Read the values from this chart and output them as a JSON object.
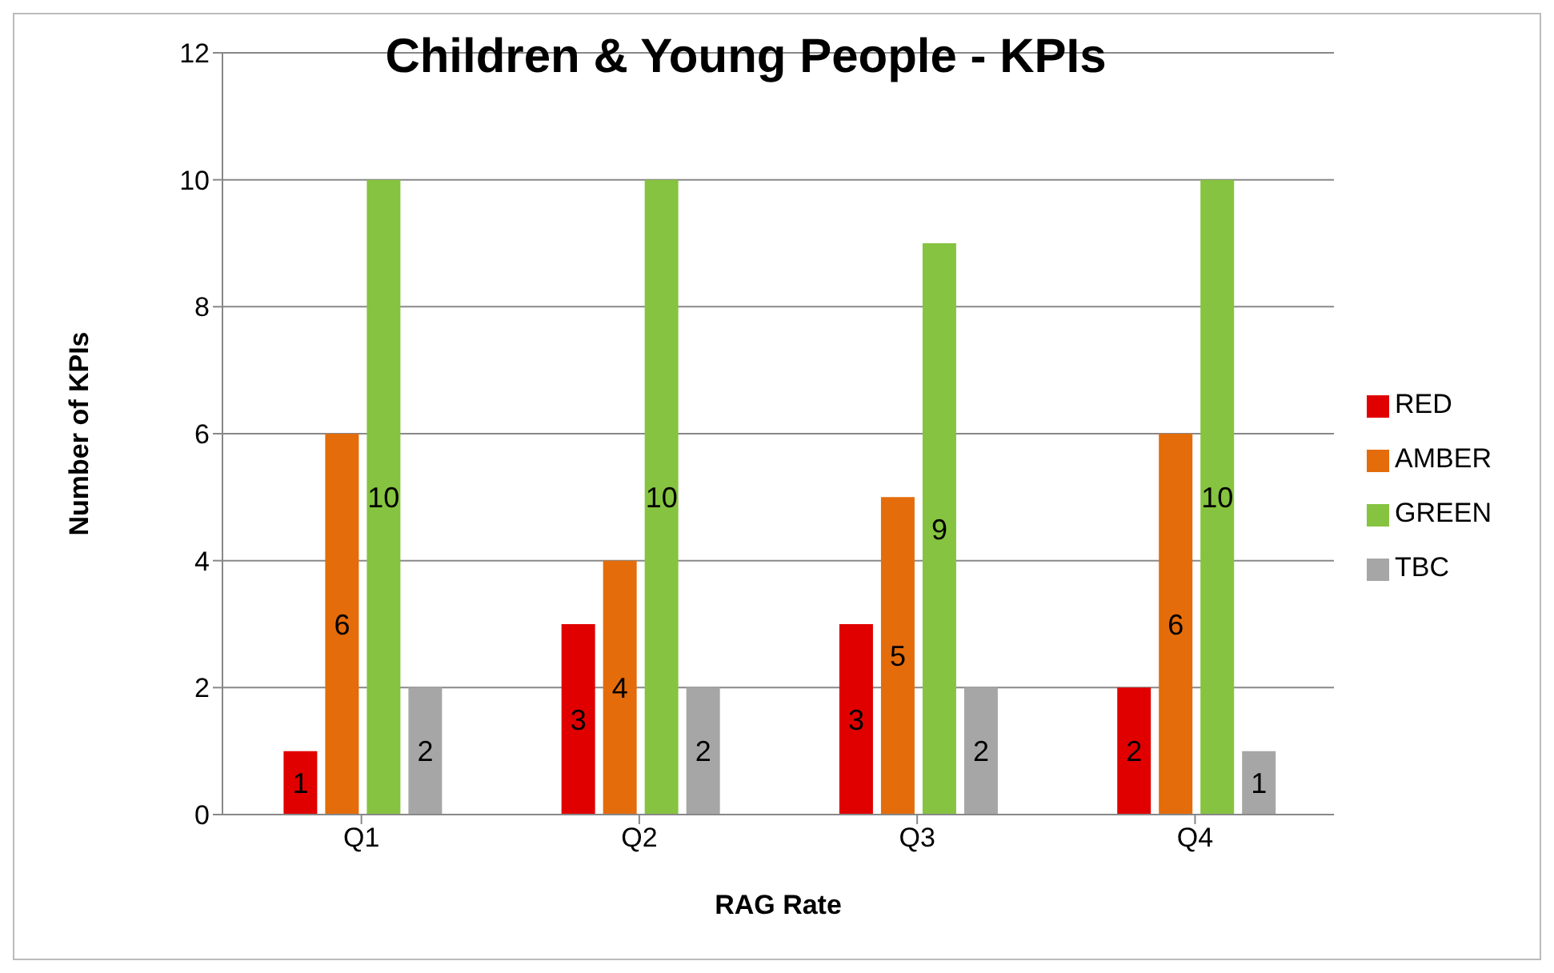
{
  "chart_data": {
    "type": "bar",
    "title": "Children & Young People - KPIs",
    "xlabel": "RAG Rate",
    "ylabel": "Number of KPIs",
    "categories": [
      "Q1",
      "Q2",
      "Q3",
      "Q4"
    ],
    "series": [
      {
        "name": "RED",
        "color": "#e00000",
        "values": [
          1,
          3,
          3,
          2
        ]
      },
      {
        "name": "AMBER",
        "color": "#e46c0a",
        "values": [
          6,
          4,
          5,
          6
        ]
      },
      {
        "name": "GREEN",
        "color": "#86c340",
        "values": [
          10,
          10,
          9,
          10
        ]
      },
      {
        "name": "TBC",
        "color": "#a6a6a6",
        "values": [
          2,
          2,
          2,
          1
        ]
      }
    ],
    "ylim": [
      0,
      12
    ],
    "yticks": [
      0,
      2,
      4,
      6,
      8,
      10,
      12
    ],
    "grid": "y",
    "legend": "right",
    "data_labels": true
  }
}
